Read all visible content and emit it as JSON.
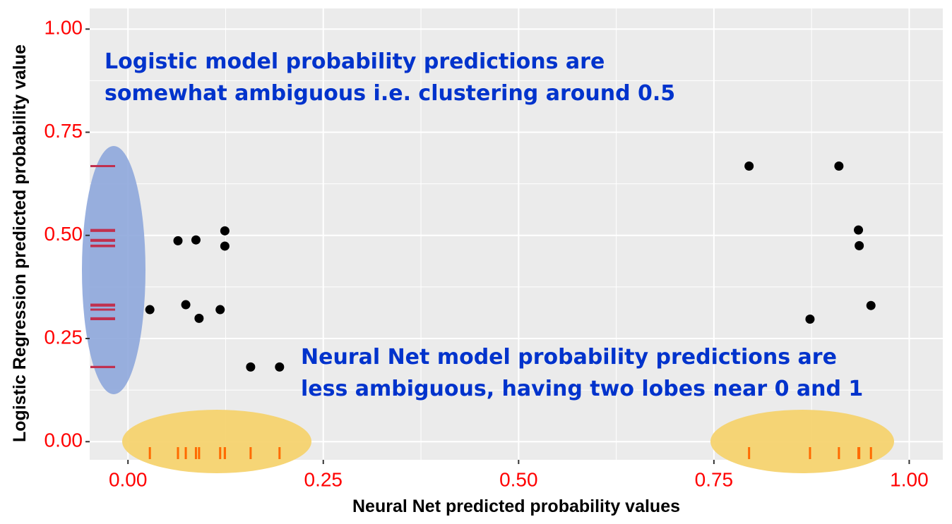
{
  "chart_data": {
    "type": "scatter",
    "x_label": "Neural Net predicted probability values",
    "y_label": "Logistic Regression predicted probability value",
    "x": [
      0.028,
      0.064,
      0.074,
      0.087,
      0.091,
      0.118,
      0.124,
      0.124,
      0.157,
      0.194,
      0.795,
      0.873,
      0.91,
      0.935,
      0.936,
      0.951
    ],
    "values": [
      0.32,
      0.487,
      0.332,
      0.489,
      0.299,
      0.32,
      0.511,
      0.474,
      0.181,
      0.181,
      0.668,
      0.297,
      0.668,
      0.513,
      0.475,
      0.33
    ],
    "color": "#000000",
    "x_rug_color": "#ff6a00",
    "y_rug_color": "#c0304f",
    "xlim": [
      -0.049,
      1.043
    ],
    "ylim": [
      -0.044,
      1.05
    ],
    "xticks": [
      {
        "value": 0,
        "label": "0.00"
      },
      {
        "value": 0.25,
        "label": "0.25"
      },
      {
        "value": 0.5,
        "label": "0.50"
      },
      {
        "value": 0.75,
        "label": "0.75"
      },
      {
        "value": 1,
        "label": "1.00"
      }
    ],
    "yticks": [
      {
        "value": 0,
        "label": "0.00"
      },
      {
        "value": 0.25,
        "label": "0.25"
      },
      {
        "value": 0.5,
        "label": "0.50"
      },
      {
        "value": 0.75,
        "label": "0.75"
      },
      {
        "value": 1,
        "label": "1.00"
      }
    ],
    "xminor": [
      0.125,
      0.375,
      0.625,
      0.875
    ],
    "yminor": [
      0.125,
      0.375,
      0.625,
      0.875
    ],
    "grid": true,
    "annotations": [
      [
        "Logistic model probability predictions are",
        "somewhat ambiguous i.e. clustering around 0.5"
      ],
      [
        "Neural Net model probability predictions are",
        "less ambiguous, having two lobes near 0 and 1"
      ]
    ]
  }
}
